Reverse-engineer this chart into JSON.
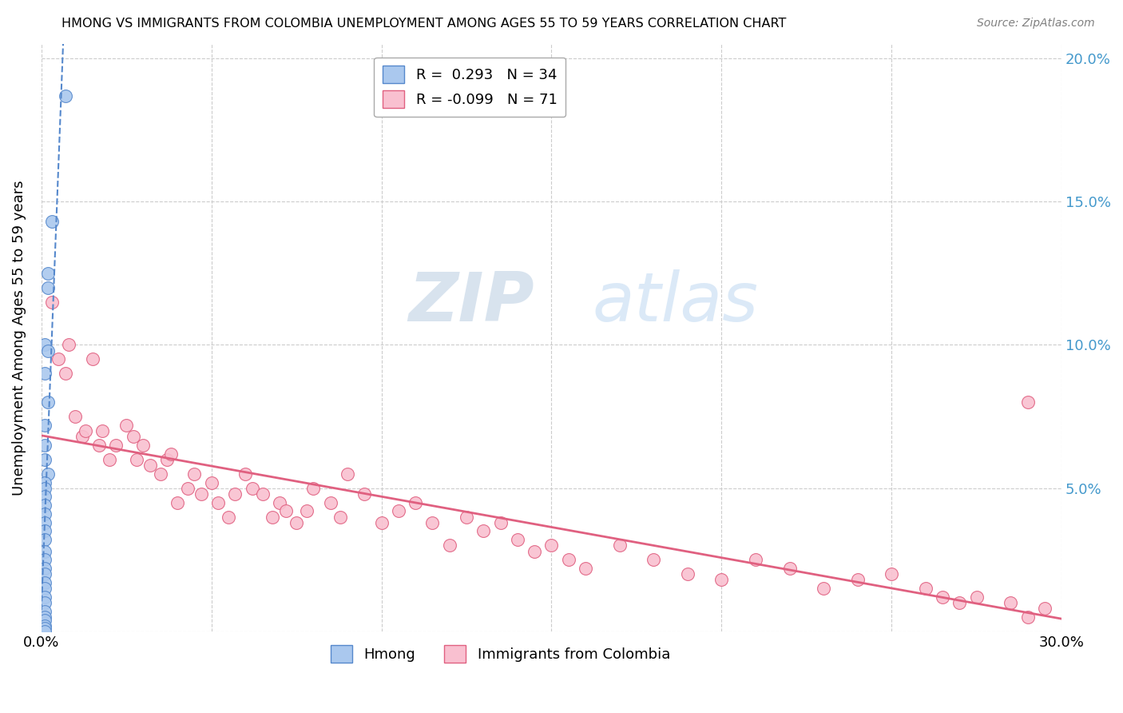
{
  "title": "HMONG VS IMMIGRANTS FROM COLOMBIA UNEMPLOYMENT AMONG AGES 55 TO 59 YEARS CORRELATION CHART",
  "source": "Source: ZipAtlas.com",
  "ylabel": "Unemployment Among Ages 55 to 59 years",
  "xlim": [
    0.0,
    0.3
  ],
  "ylim": [
    0.0,
    0.205
  ],
  "hmong_R": 0.293,
  "hmong_N": 34,
  "colombia_R": -0.099,
  "colombia_N": 71,
  "hmong_color": "#aac8ee",
  "colombia_color": "#f9c0d0",
  "hmong_line_color": "#5588cc",
  "colombia_line_color": "#e06080",
  "hmong_scatter_x": [
    0.007,
    0.003,
    0.002,
    0.002,
    0.001,
    0.002,
    0.001,
    0.002,
    0.001,
    0.001,
    0.001,
    0.002,
    0.001,
    0.001,
    0.001,
    0.001,
    0.001,
    0.001,
    0.001,
    0.001,
    0.001,
    0.001,
    0.001,
    0.001,
    0.001,
    0.001,
    0.001,
    0.001,
    0.001,
    0.001,
    0.001,
    0.001,
    0.001,
    0.001
  ],
  "hmong_scatter_y": [
    0.187,
    0.143,
    0.125,
    0.12,
    0.1,
    0.098,
    0.09,
    0.08,
    0.072,
    0.065,
    0.06,
    0.055,
    0.052,
    0.05,
    0.047,
    0.044,
    0.041,
    0.038,
    0.035,
    0.032,
    0.028,
    0.025,
    0.022,
    0.02,
    0.017,
    0.015,
    0.012,
    0.01,
    0.007,
    0.005,
    0.004,
    0.002,
    0.001,
    0.0
  ],
  "colombia_scatter_x": [
    0.003,
    0.005,
    0.007,
    0.008,
    0.01,
    0.012,
    0.013,
    0.015,
    0.017,
    0.018,
    0.02,
    0.022,
    0.025,
    0.027,
    0.028,
    0.03,
    0.032,
    0.035,
    0.037,
    0.038,
    0.04,
    0.043,
    0.045,
    0.047,
    0.05,
    0.052,
    0.055,
    0.057,
    0.06,
    0.062,
    0.065,
    0.068,
    0.07,
    0.072,
    0.075,
    0.078,
    0.08,
    0.085,
    0.088,
    0.09,
    0.095,
    0.1,
    0.105,
    0.11,
    0.115,
    0.12,
    0.125,
    0.13,
    0.135,
    0.14,
    0.145,
    0.15,
    0.155,
    0.16,
    0.17,
    0.18,
    0.19,
    0.2,
    0.21,
    0.22,
    0.23,
    0.24,
    0.25,
    0.26,
    0.265,
    0.27,
    0.275,
    0.285,
    0.29,
    0.295,
    0.29
  ],
  "colombia_scatter_y": [
    0.115,
    0.095,
    0.09,
    0.1,
    0.075,
    0.068,
    0.07,
    0.095,
    0.065,
    0.07,
    0.06,
    0.065,
    0.072,
    0.068,
    0.06,
    0.065,
    0.058,
    0.055,
    0.06,
    0.062,
    0.045,
    0.05,
    0.055,
    0.048,
    0.052,
    0.045,
    0.04,
    0.048,
    0.055,
    0.05,
    0.048,
    0.04,
    0.045,
    0.042,
    0.038,
    0.042,
    0.05,
    0.045,
    0.04,
    0.055,
    0.048,
    0.038,
    0.042,
    0.045,
    0.038,
    0.03,
    0.04,
    0.035,
    0.038,
    0.032,
    0.028,
    0.03,
    0.025,
    0.022,
    0.03,
    0.025,
    0.02,
    0.018,
    0.025,
    0.022,
    0.015,
    0.018,
    0.02,
    0.015,
    0.012,
    0.01,
    0.012,
    0.01,
    0.005,
    0.008,
    0.08
  ],
  "background_color": "#ffffff",
  "grid_color": "#cccccc",
  "watermark_zip": "ZIP",
  "watermark_atlas": "atlas"
}
